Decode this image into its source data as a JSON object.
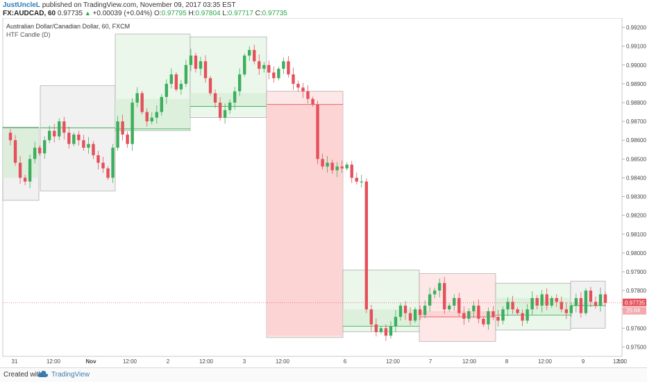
{
  "header": {
    "username": "JustUncleL",
    "published_text": "published on TradingView.com, November 09, 2017 03:35 EST",
    "symbol": "FX:AUDCAD, 60",
    "last_price": "0.97735",
    "change": "+0.00039 (+0.04%)",
    "o_label": "O:",
    "o_value": "0.97795",
    "h_label": "H:",
    "h_value": "0.97804",
    "l_label": "L:",
    "l_value": "0.97717",
    "c_label": "C:",
    "c_value": "0.97735"
  },
  "legend": {
    "title": "Australian Dollar/Canadian Dollar, 60, FXCM",
    "indicator": "HTF Candle (D)"
  },
  "footer": {
    "created_with": "Created with",
    "brand": "TradingView"
  },
  "colors": {
    "up": "#3dae5c",
    "down": "#e5505b",
    "htf_up_fill": "#e9f6e9",
    "htf_down_fill": "#fde4e4",
    "htf_neutral_fill": "#efefef",
    "price_line": "#e5505b",
    "price_label_bg": "#e5505b",
    "open_line": "#2ba84a"
  },
  "chart_data": {
    "type": "candlestick",
    "title": "Australian Dollar/Canadian Dollar, 60, FXCM",
    "ylim": [
      0.9745,
      0.9925
    ],
    "y_ticks": [
      "0.97500",
      "0.97600",
      "0.97700",
      "0.97800",
      "0.97900",
      "0.98000",
      "0.98100",
      "0.98200",
      "0.98300",
      "0.98400",
      "0.98500",
      "0.98600",
      "0.98700",
      "0.98800",
      "0.98900",
      "0.99000",
      "0.99100",
      "0.99200"
    ],
    "x_ticks": [
      "31",
      "12:00",
      "Nov",
      "12:00",
      "2",
      "12:00",
      "3",
      "12:00",
      "6",
      "12:00",
      "7",
      "12:00",
      "8",
      "12:00",
      "9",
      "12:00",
      "10"
    ],
    "last_price_label": "0.97735",
    "countdown_label": "25:04",
    "last_price": 0.97735,
    "htf_daily_candles": [
      {
        "day": "Oct 31",
        "open": 0.98666,
        "high": 0.9867,
        "low": 0.9828,
        "close": 0.984,
        "direction": "neutral"
      },
      {
        "day": "Oct 31b",
        "open": 0.98666,
        "high": 0.9889,
        "low": 0.9833,
        "close": 0.98666,
        "direction": "neutral"
      },
      {
        "day": "Nov 1",
        "open": 0.9866,
        "high": 0.99165,
        "low": 0.9865,
        "close": 0.9882,
        "direction": "up"
      },
      {
        "day": "Nov 2",
        "open": 0.9878,
        "high": 0.9915,
        "low": 0.9872,
        "close": 0.9885,
        "direction": "up"
      },
      {
        "day": "Nov 3",
        "open": 0.9879,
        "high": 0.9886,
        "low": 0.9755,
        "close": 0.9756,
        "direction": "down"
      },
      {
        "day": "Nov 6",
        "open": 0.9761,
        "high": 0.9791,
        "low": 0.9758,
        "close": 0.977,
        "direction": "up"
      },
      {
        "day": "Nov 7",
        "open": 0.9766,
        "high": 0.9789,
        "low": 0.9753,
        "close": 0.9769,
        "direction": "down"
      },
      {
        "day": "Nov 8",
        "open": 0.9767,
        "high": 0.9784,
        "low": 0.9759,
        "close": 0.9776,
        "direction": "up"
      },
      {
        "day": "Nov 9",
        "open": 0.9772,
        "high": 0.9785,
        "low": 0.976,
        "close": 0.97735,
        "direction": "neutral"
      }
    ],
    "price_path": [
      0.9864,
      0.986,
      0.9848,
      0.984,
      0.9838,
      0.985,
      0.9856,
      0.9853,
      0.986,
      0.9865,
      0.9862,
      0.987,
      0.9864,
      0.9858,
      0.9863,
      0.986,
      0.9856,
      0.9858,
      0.9852,
      0.9848,
      0.9845,
      0.984,
      0.9856,
      0.987,
      0.9863,
      0.9858,
      0.988,
      0.9885,
      0.9875,
      0.987,
      0.9872,
      0.9875,
      0.9883,
      0.989,
      0.9895,
      0.9887,
      0.989,
      0.99,
      0.9905,
      0.9898,
      0.9902,
      0.9893,
      0.9885,
      0.988,
      0.9872,
      0.9876,
      0.988,
      0.9886,
      0.9895,
      0.9905,
      0.9908,
      0.9902,
      0.9898,
      0.99,
      0.9896,
      0.9893,
      0.9898,
      0.9902,
      0.9895,
      0.989,
      0.9888,
      0.9886,
      0.9882,
      0.9879,
      0.985,
      0.9846,
      0.9848,
      0.9844,
      0.9846,
      0.9845,
      0.9847,
      0.984,
      0.9838,
      0.9838,
      0.977,
      0.9762,
      0.9758,
      0.976,
      0.9756,
      0.9761,
      0.9766,
      0.9772,
      0.9768,
      0.9764,
      0.977,
      0.9767,
      0.9772,
      0.9778,
      0.978,
      0.9784,
      0.977,
      0.9772,
      0.9776,
      0.9768,
      0.9765,
      0.9769,
      0.9772,
      0.9765,
      0.9762,
      0.9769,
      0.9766,
      0.9764,
      0.977,
      0.9774,
      0.977,
      0.9768,
      0.9764,
      0.977,
      0.9776,
      0.9772,
      0.9778,
      0.9772,
      0.9776,
      0.9774,
      0.977,
      0.9768,
      0.9772,
      0.9776,
      0.9768,
      0.978,
      0.9774,
      0.9772,
      0.9778,
      0.97735
    ]
  }
}
